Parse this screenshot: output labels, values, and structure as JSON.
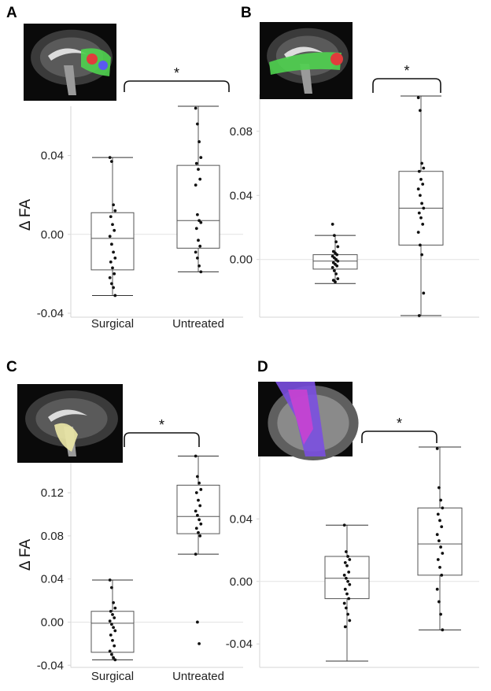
{
  "chart_data": [
    {
      "panel": "A",
      "type": "box",
      "ylabel": "Δ FA",
      "categories": [
        "Surgical",
        "Untreated"
      ],
      "yticks": [
        "0.04",
        "0.00",
        "-0.04"
      ],
      "ylim": [
        -0.042,
        0.065
      ],
      "significance": "*",
      "boxes": [
        {
          "category": "Surgical",
          "whisker_low": -0.031,
          "q1": -0.018,
          "median": -0.002,
          "q3": 0.011,
          "whisker_high": 0.039,
          "points": [
            0.039,
            0.037,
            0.015,
            0.012,
            0.009,
            0.005,
            0.002,
            -0.001,
            -0.005,
            -0.009,
            -0.012,
            -0.014,
            -0.017,
            -0.02,
            -0.022,
            -0.025,
            -0.027,
            -0.031
          ]
        },
        {
          "category": "Untreated",
          "whisker_low": -0.019,
          "q1": -0.007,
          "median": 0.007,
          "q3": 0.035,
          "whisker_high": 0.065,
          "points": [
            0.064,
            0.056,
            0.047,
            0.039,
            0.036,
            0.033,
            0.028,
            0.025,
            0.01,
            0.007,
            0.006,
            0.003,
            -0.003,
            -0.006,
            -0.009,
            -0.012,
            -0.016,
            -0.019
          ]
        }
      ]
    },
    {
      "panel": "B",
      "type": "box",
      "ylabel": "",
      "categories": [
        "",
        ""
      ],
      "yticks": [
        "0.08",
        "0.04",
        "0.00"
      ],
      "ylim": [
        -0.036,
        0.103
      ],
      "significance": "*",
      "boxes": [
        {
          "category": "",
          "whisker_low": -0.015,
          "q1": -0.006,
          "median": -0.001,
          "q3": 0.003,
          "whisker_high": 0.015,
          "points": [
            0.022,
            0.015,
            0.011,
            0.008,
            0.005,
            0.004,
            0.003,
            0.002,
            0.001,
            0.0,
            -0.001,
            -0.002,
            -0.003,
            -0.004,
            -0.005,
            -0.007,
            -0.009,
            -0.012,
            -0.013,
            -0.014
          ]
        },
        {
          "category": "",
          "whisker_low": -0.035,
          "q1": 0.009,
          "median": 0.032,
          "q3": 0.055,
          "whisker_high": 0.102,
          "points": [
            0.101,
            0.093,
            0.06,
            0.057,
            0.055,
            0.05,
            0.047,
            0.044,
            0.04,
            0.035,
            0.032,
            0.029,
            0.026,
            0.022,
            0.017,
            0.009,
            0.003,
            -0.021,
            -0.035
          ]
        }
      ]
    },
    {
      "panel": "C",
      "type": "box",
      "ylabel": "Δ FA",
      "categories": [
        "Surgical",
        "Untreated"
      ],
      "yticks": [
        "0.12",
        "0.08",
        "0.04",
        "0.00",
        "-0.04"
      ],
      "ylim": [
        -0.042,
        0.158
      ],
      "significance": "*",
      "boxes": [
        {
          "category": "Surgical",
          "whisker_low": -0.035,
          "q1": -0.028,
          "median": -0.001,
          "q3": 0.01,
          "whisker_high": 0.039,
          "points": [
            0.039,
            0.032,
            0.018,
            0.013,
            0.01,
            0.007,
            0.004,
            0.001,
            -0.002,
            -0.005,
            -0.008,
            -0.012,
            -0.017,
            -0.022,
            -0.027,
            -0.03,
            -0.033,
            -0.035
          ]
        },
        {
          "category": "Untreated",
          "whisker_low": 0.063,
          "q1": 0.082,
          "median": 0.098,
          "q3": 0.127,
          "whisker_high": 0.154,
          "points": [
            0.154,
            0.135,
            0.129,
            0.123,
            0.12,
            0.113,
            0.108,
            0.103,
            0.099,
            0.095,
            0.091,
            0.087,
            0.083,
            0.08,
            0.063,
            0.0,
            -0.02
          ]
        }
      ]
    },
    {
      "panel": "D",
      "type": "box",
      "ylabel": "",
      "categories": [
        "",
        ""
      ],
      "yticks": [
        "0.04",
        "0.00",
        "-0.04"
      ],
      "ylim": [
        -0.055,
        0.088
      ],
      "significance": "*",
      "boxes": [
        {
          "category": "",
          "whisker_low": -0.051,
          "q1": -0.011,
          "median": 0.002,
          "q3": 0.016,
          "whisker_high": 0.036,
          "points": [
            0.036,
            0.019,
            0.016,
            0.014,
            0.012,
            0.01,
            0.006,
            0.004,
            0.002,
            0.0,
            -0.002,
            -0.005,
            -0.008,
            -0.011,
            -0.014,
            -0.017,
            -0.021,
            -0.025,
            -0.029
          ]
        },
        {
          "category": "",
          "whisker_low": -0.031,
          "q1": 0.004,
          "median": 0.024,
          "q3": 0.047,
          "whisker_high": 0.086,
          "points": [
            0.085,
            0.06,
            0.052,
            0.047,
            0.043,
            0.039,
            0.035,
            0.03,
            0.026,
            0.022,
            0.018,
            0.014,
            0.009,
            0.004,
            -0.005,
            -0.013,
            -0.021,
            -0.031
          ]
        }
      ]
    }
  ],
  "insets": [
    {
      "panel": "A",
      "icon": "sagittal-brain-tractography-thumbnail"
    },
    {
      "panel": "B",
      "icon": "sagittal-brain-tractography-thumbnail"
    },
    {
      "panel": "C",
      "icon": "sagittal-brain-tract-mask-thumbnail"
    },
    {
      "panel": "D",
      "icon": "axial-brain-tractography-thumbnail"
    }
  ]
}
